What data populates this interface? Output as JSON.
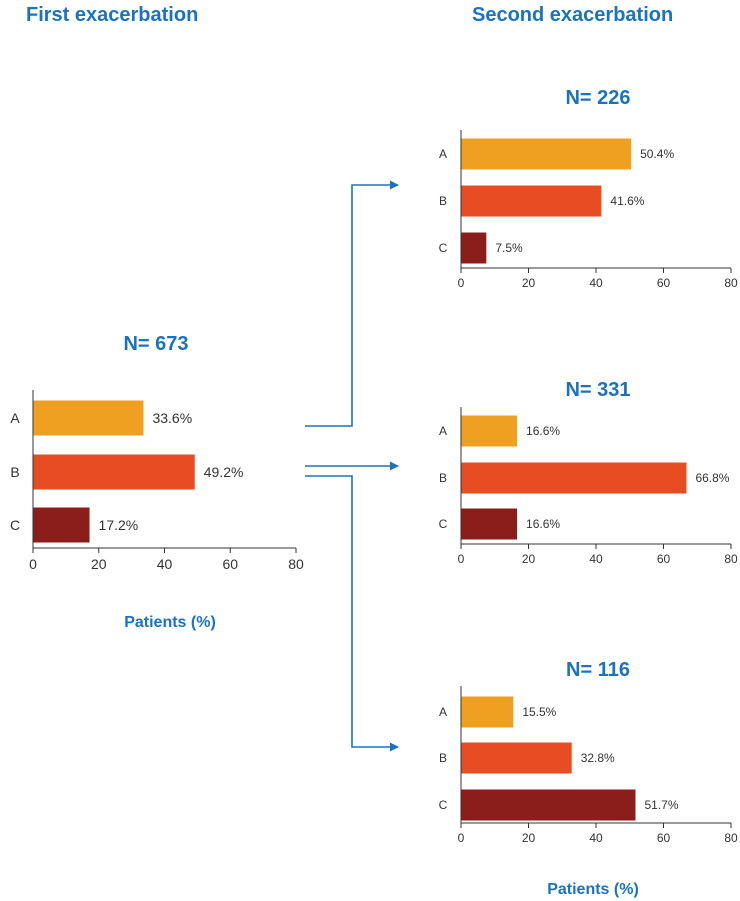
{
  "headings": {
    "first": "First exacerbation",
    "second": "Second exacerbation"
  },
  "colors": {
    "A": "#f0a020",
    "B": "#e84c22",
    "C": "#8b1e1a",
    "accent": "#1a73c1",
    "axis": "#333333"
  },
  "chart_data": [
    {
      "type": "bar",
      "orientation": "horizontal",
      "panel": "first",
      "title": "N= 673",
      "categories": [
        "A",
        "B",
        "C"
      ],
      "values": [
        33.6,
        49.2,
        17.2
      ],
      "value_labels": [
        "33.6%",
        "49.2%",
        "17.2%"
      ],
      "xlabel": "Patients (%)",
      "xlim": [
        0,
        80
      ],
      "xticks": [
        0,
        20,
        40,
        60,
        80
      ],
      "grid": false
    },
    {
      "type": "bar",
      "orientation": "horizontal",
      "panel": "second-A",
      "title": "N= 226",
      "categories": [
        "A",
        "B",
        "C"
      ],
      "values": [
        50.4,
        41.6,
        7.5
      ],
      "value_labels": [
        "50.4%",
        "41.6%",
        "7.5%"
      ],
      "xlabel": "",
      "xlim": [
        0,
        80
      ],
      "xticks": [
        0,
        20,
        40,
        60,
        80
      ],
      "grid": false
    },
    {
      "type": "bar",
      "orientation": "horizontal",
      "panel": "second-B",
      "title": "N= 331",
      "categories": [
        "A",
        "B",
        "C"
      ],
      "values": [
        16.6,
        66.8,
        16.6
      ],
      "value_labels": [
        "16.6%",
        "66.8%",
        "16.6%"
      ],
      "xlabel": "",
      "xlim": [
        0,
        80
      ],
      "xticks": [
        0,
        20,
        40,
        60,
        80
      ],
      "grid": false
    },
    {
      "type": "bar",
      "orientation": "horizontal",
      "panel": "second-C",
      "title": "N= 116",
      "categories": [
        "A",
        "B",
        "C"
      ],
      "values": [
        15.5,
        32.8,
        51.7
      ],
      "value_labels": [
        "15.5%",
        "32.8%",
        "51.7%"
      ],
      "xlabel": "Patients (%)",
      "xlim": [
        0,
        80
      ],
      "xticks": [
        0,
        20,
        40,
        60,
        80
      ],
      "grid": false
    }
  ]
}
